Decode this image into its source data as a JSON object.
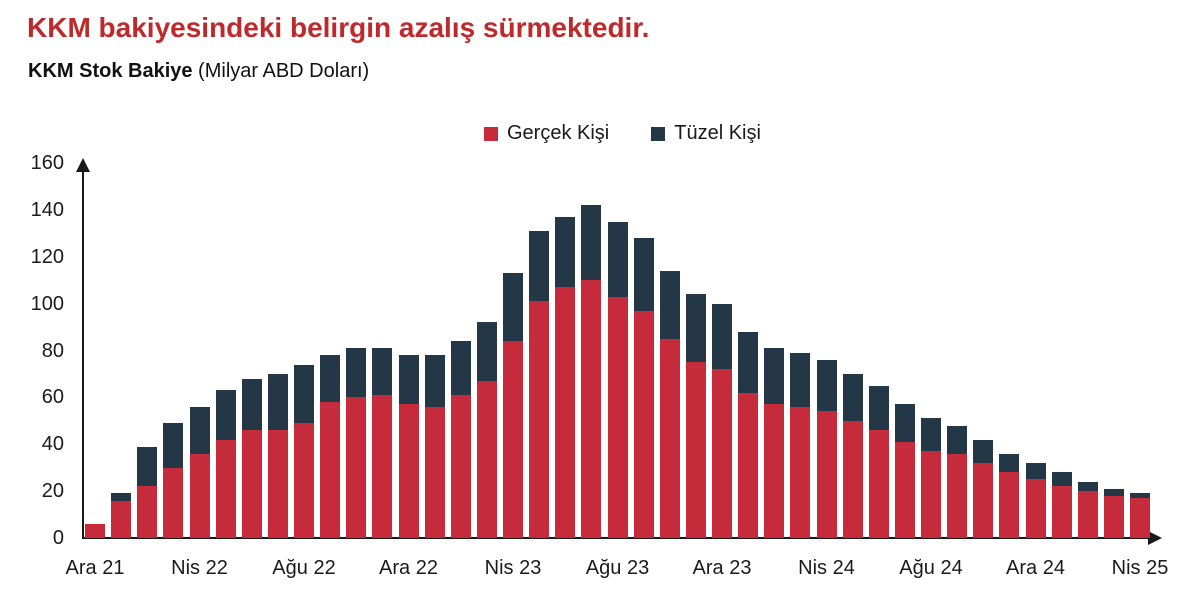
{
  "title": {
    "text": "KKM bakiyesindeki belirgin azalış sürmektedir.",
    "color": "#BE2A2C"
  },
  "subtitle": {
    "bold": "KKM Stok Bakiye",
    "rest": " (Milyar ABD Doları)"
  },
  "legend": {
    "items": [
      {
        "label": "Gerçek Kişi",
        "color": "#C62B3B"
      },
      {
        "label": "Tüzel Kişi",
        "color": "#233747"
      }
    ]
  },
  "chart_data": {
    "type": "bar",
    "stacked": true,
    "title": "KKM Stok Bakiye (Milyar ABD Doları)",
    "ylabel": "Milyar ABD Doları",
    "ylim": [
      0,
      160
    ],
    "yticks": [
      0,
      20,
      40,
      60,
      80,
      100,
      120,
      140,
      160
    ],
    "grid": false,
    "axis_arrows": true,
    "legend_position": "top-center",
    "x_visible_tick_labels": [
      "Ara 21",
      "Nis 22",
      "Ağu 22",
      "Ara 22",
      "Nis 23",
      "Ağu 23",
      "Ara 23",
      "Nis 24",
      "Ağu 24",
      "Ara 24",
      "Nis 25"
    ],
    "label_every_n_bars": 4,
    "categories": [
      "Ara 21",
      "Oca 22",
      "Şub 22",
      "Mar 22",
      "Nis 22",
      "May 22",
      "Haz 22",
      "Tem 22",
      "Ağu 22",
      "Eyl 22",
      "Eki 22",
      "Kas 22",
      "Ara 22",
      "Oca 23",
      "Şub 23",
      "Mar 23",
      "Nis 23",
      "May 23",
      "Haz 23",
      "Tem 23",
      "Ağu 23",
      "Eyl 23",
      "Eki 23",
      "Kas 23",
      "Ara 23",
      "Oca 24",
      "Şub 24",
      "Mar 24",
      "Nis 24",
      "May 24",
      "Haz 24",
      "Tem 24",
      "Ağu 24",
      "Eyl 24",
      "Eki 24",
      "Kas 24",
      "Ara 24",
      "Oca 25",
      "Şub 25",
      "Mar 25",
      "Nis 25"
    ],
    "series": [
      {
        "name": "Gerçek Kişi",
        "color": "#C62B3B",
        "values": [
          6,
          16,
          22,
          30,
          36,
          42,
          46,
          46,
          49,
          58,
          60,
          61,
          57,
          56,
          61,
          67,
          84,
          101,
          107,
          110,
          103,
          97,
          85,
          75,
          72,
          62,
          57,
          56,
          54,
          50,
          46,
          41,
          37,
          36,
          32,
          28,
          25,
          22,
          20,
          18,
          17
        ]
      },
      {
        "name": "Tüzel Kişi",
        "color": "#233747",
        "values": [
          0,
          3,
          17,
          19,
          20,
          21,
          22,
          24,
          25,
          20,
          21,
          20,
          21,
          22,
          23,
          25,
          29,
          30,
          30,
          32,
          32,
          31,
          29,
          29,
          28,
          26,
          24,
          23,
          22,
          20,
          19,
          16,
          14,
          12,
          10,
          8,
          7,
          6,
          4,
          3,
          2
        ]
      }
    ]
  }
}
